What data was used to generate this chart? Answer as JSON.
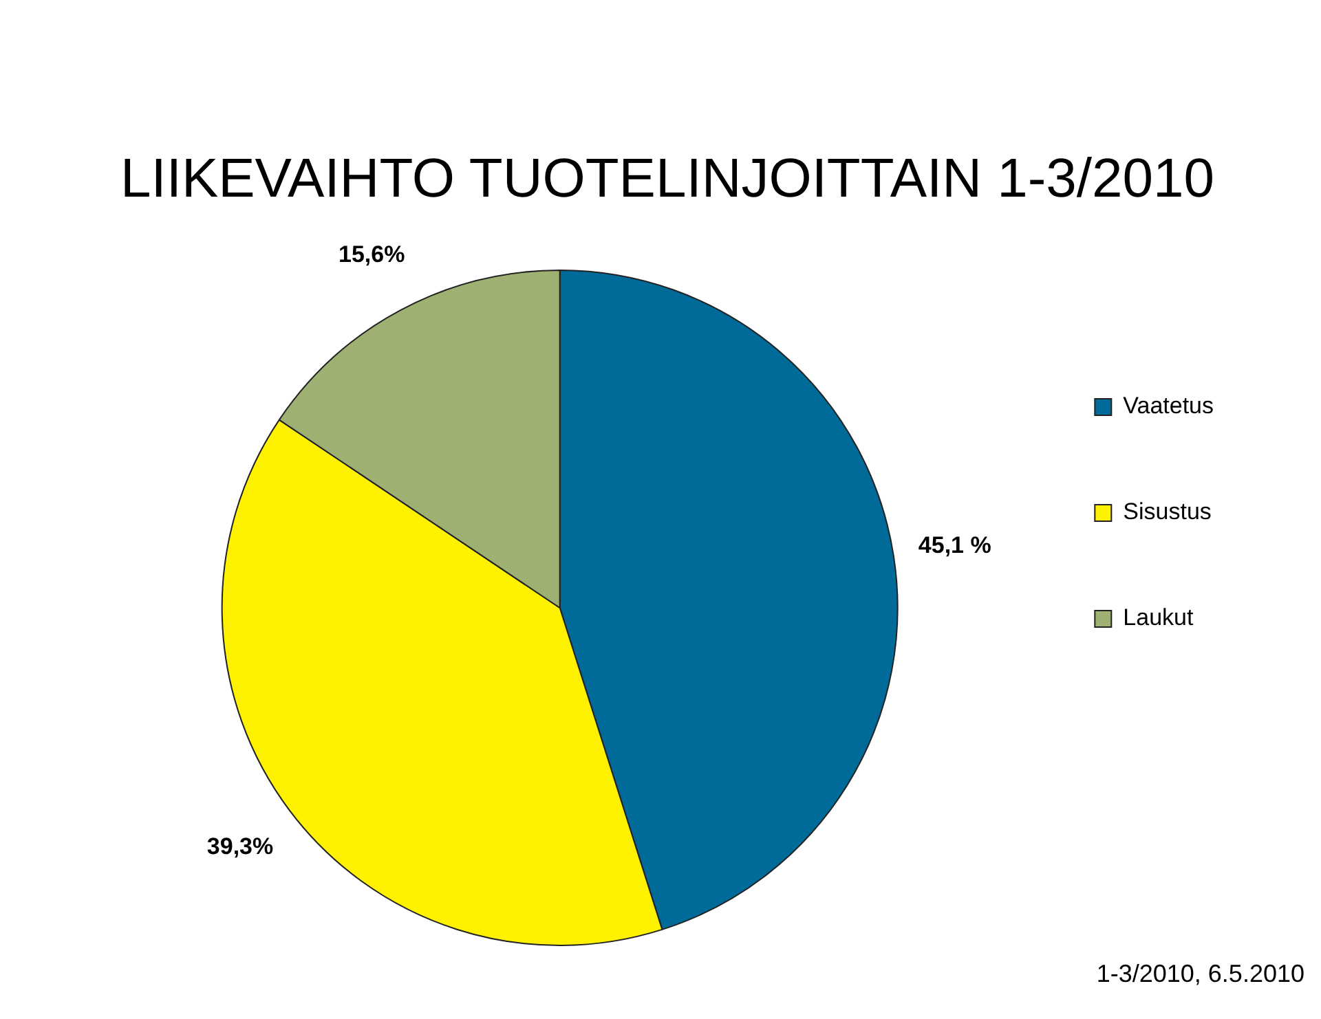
{
  "chart_data": {
    "type": "pie",
    "title": "LIIKEVAIHTO TUOTELINJOITTAIN 1-3/2010",
    "categories": [
      "Vaatetus",
      "Sisustus",
      "Laukut"
    ],
    "values": [
      45.1,
      39.3,
      15.6
    ],
    "value_labels": [
      "45,1 %",
      "39,3%",
      "15,6%"
    ],
    "colors": [
      "#006a99",
      "#fff200",
      "#9fb172"
    ],
    "legend": "right",
    "annotations": [
      "1-3/2010, 6.5.2010"
    ]
  }
}
